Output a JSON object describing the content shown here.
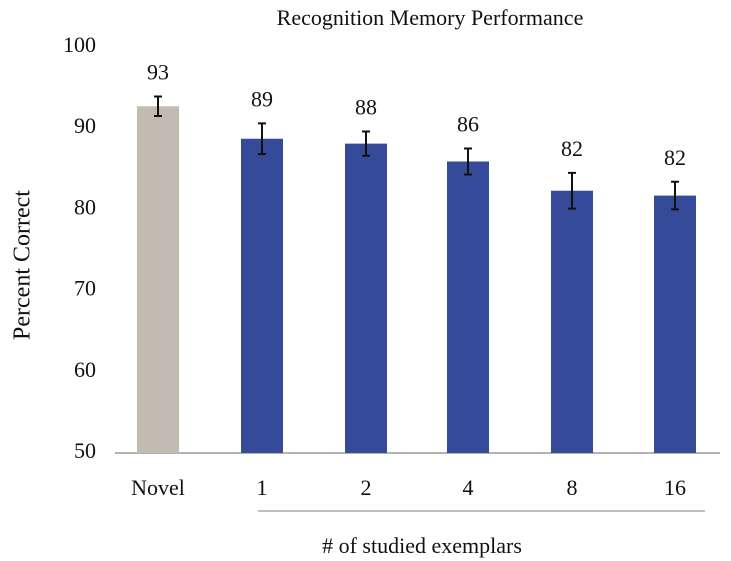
{
  "chart_data": {
    "type": "bar",
    "title": "Recognition Memory Performance",
    "y_label": "Percent Correct",
    "x_label": "# of studied exemplars",
    "categories": [
      "Novel",
      "1",
      "2",
      "4",
      "8",
      "16"
    ],
    "values": [
      92.7,
      88.7,
      88.1,
      85.9,
      82.3,
      81.7
    ],
    "value_labels": [
      "93",
      "89",
      "88",
      "86",
      "82",
      "82"
    ],
    "errors": [
      1.2,
      1.9,
      1.5,
      1.6,
      2.2,
      1.7
    ],
    "colors": [
      "#c2bbb1",
      "#354b9a",
      "#354b9a",
      "#354b9a",
      "#354b9a",
      "#354b9a"
    ],
    "ylim": [
      50,
      100
    ],
    "yticks": [
      50,
      60,
      70,
      80,
      90,
      100
    ],
    "grid": false
  }
}
